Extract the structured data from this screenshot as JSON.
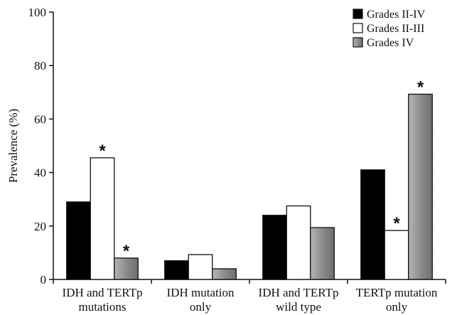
{
  "chart_data": {
    "type": "bar",
    "ylabel": "Prevalence (%)",
    "ylim": [
      0,
      100
    ],
    "yticks": [
      "0",
      "20",
      "40",
      "60",
      "80",
      "100"
    ],
    "categories": [
      [
        "IDH and TERTp",
        "mutations"
      ],
      [
        "IDH mutation",
        "only"
      ],
      [
        "IDH and TERTp",
        "wild type"
      ],
      [
        "TERTp mutation",
        "only"
      ]
    ],
    "series": [
      {
        "name": "Grades II-IV",
        "color": "#000000",
        "values": [
          29,
          7,
          24,
          41
        ],
        "significant": [
          false,
          false,
          false,
          false
        ]
      },
      {
        "name": "Grades II-III",
        "color": "#ffffff",
        "values": [
          45.5,
          9.3,
          27.5,
          18.3
        ],
        "significant": [
          true,
          false,
          false,
          true
        ]
      },
      {
        "name": "Grades IV",
        "color": "#8c8c8c",
        "values": [
          8,
          4,
          19.4,
          69.3
        ],
        "significant": [
          true,
          false,
          false,
          true
        ]
      }
    ],
    "significance_marker": "*",
    "legend_position": "top-right",
    "grid": false
  }
}
